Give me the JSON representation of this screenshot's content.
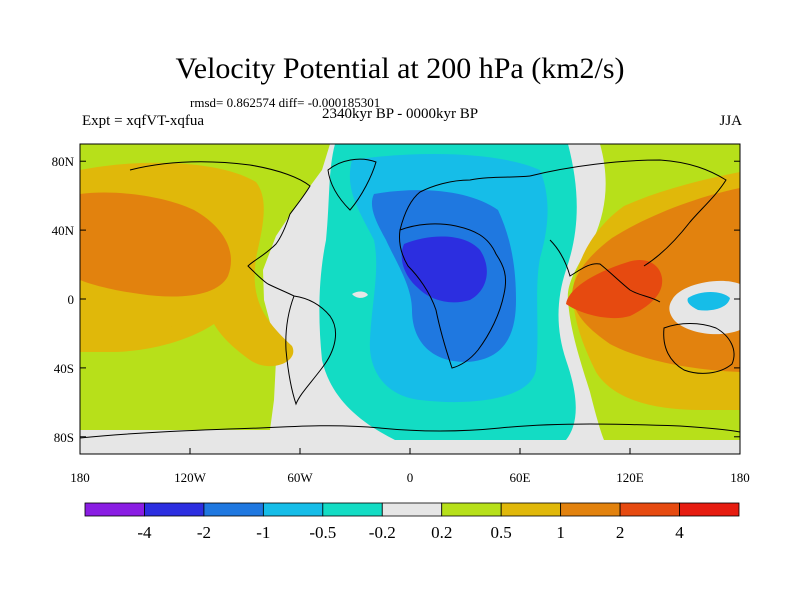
{
  "title": "Velocity Potential at 200 hPa (km2/s)",
  "stats_line": "rmsd= 0.862574 diff= -0.000185301",
  "experiment": "Expt = xqfVT-xqfua",
  "period": "2340kyr BP - 0000kyr BP",
  "season": "JJA",
  "y_ticks": [
    {
      "label": "80N",
      "lat": 80
    },
    {
      "label": "40N",
      "lat": 40
    },
    {
      "label": "0",
      "lat": 0
    },
    {
      "label": "40S",
      "lat": -40
    },
    {
      "label": "80S",
      "lat": -80
    }
  ],
  "x_ticks": [
    {
      "label": "180",
      "lon": -180
    },
    {
      "label": "120W",
      "lon": -120
    },
    {
      "label": "60W",
      "lon": -60
    },
    {
      "label": "0",
      "lon": 0
    },
    {
      "label": "60E",
      "lon": 60
    },
    {
      "label": "120E",
      "lon": 120
    },
    {
      "label": "180",
      "lon": 180
    }
  ],
  "colorbar": {
    "colors": [
      "#8a1de3",
      "#2c2ee0",
      "#1f78e0",
      "#16bde8",
      "#13dcc4",
      "#e6e6e6",
      "#b7e01a",
      "#e0b80a",
      "#e2820e",
      "#e64a10",
      "#e61c10"
    ],
    "labels": [
      "-4",
      "-2",
      "-1",
      "-0.5",
      "-0.2",
      "0.2",
      "0.5",
      "1",
      "2",
      "4"
    ]
  },
  "field_colors": {
    "neutral": "#e6e6e6",
    "neg1": "#13dcc4",
    "neg2": "#16bde8",
    "neg3": "#1f78e0",
    "neg4": "#2c2ee0",
    "pos1": "#b7e01a",
    "pos2": "#e0b80a",
    "pos3": "#e2820e",
    "pos4": "#e64a10"
  }
}
